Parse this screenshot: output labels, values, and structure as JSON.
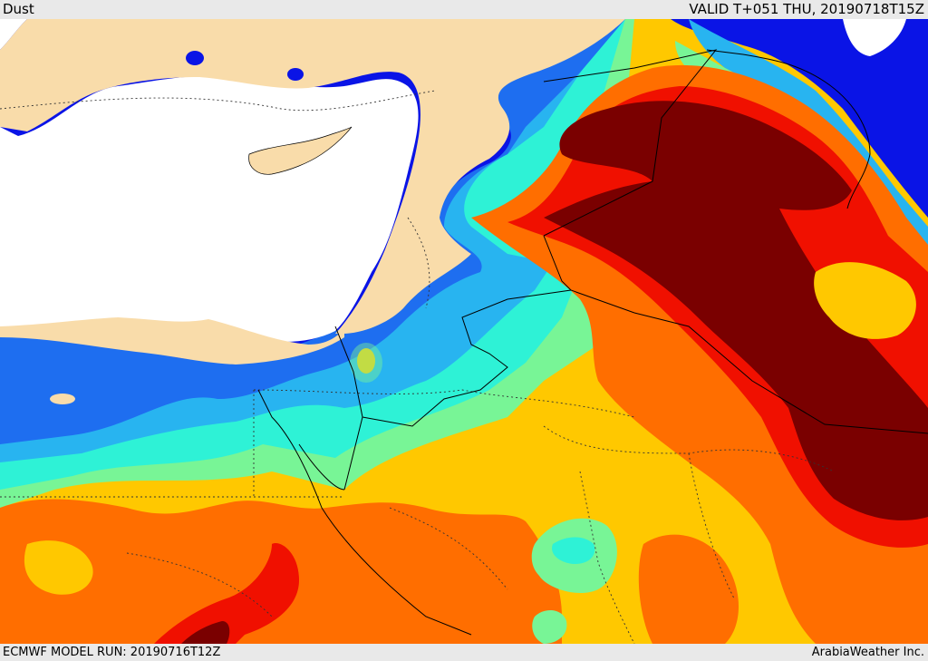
{
  "header": {
    "title": "Dust",
    "valid_time": "VALID T+051 THU, 20190718T15Z"
  },
  "footer": {
    "model_run": "ECMWF MODEL RUN: 20190716T12Z",
    "credit": "ArabiaWeather Inc."
  },
  "map": {
    "field": "dust concentration",
    "colors": {
      "land": "#f9dcaa",
      "sea": "#ffffff",
      "dark_blue": "#0a14e6",
      "blue": "#1e6ef0",
      "light_blue": "#28b4f0",
      "cyan": "#2ef2d6",
      "green": "#78f596",
      "yellow_green": "#c8f03c",
      "yellow": "#ffc800",
      "orange": "#ff6e00",
      "red": "#f01000",
      "dark_red": "#7a0000"
    }
  }
}
